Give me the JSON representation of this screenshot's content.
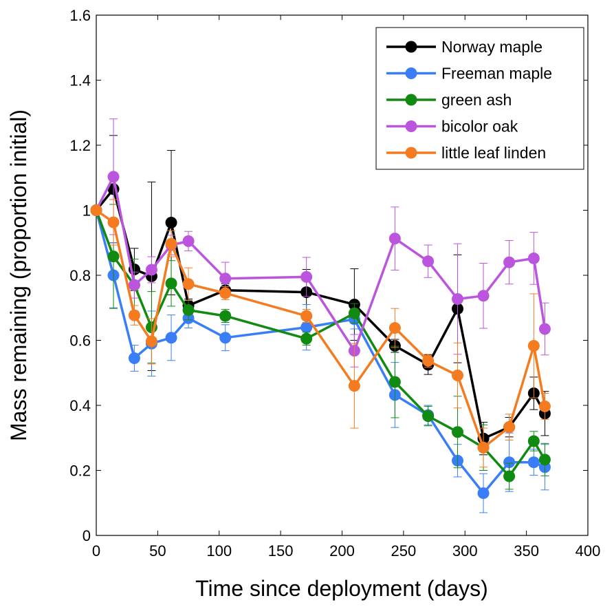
{
  "chart_data": {
    "type": "line",
    "title": "",
    "xlabel": "Time since deployment (days)",
    "ylabel": "Mass remaining (proportion initial)",
    "xlim": [
      0,
      400
    ],
    "ylim": [
      0,
      1.6
    ],
    "xticks": [
      "0",
      "50",
      "100",
      "150",
      "200",
      "250",
      "300",
      "350",
      "400"
    ],
    "yticks": [
      "0",
      "0.2",
      "0.4",
      "0.6",
      "0.8",
      "1",
      "1.2",
      "1.4",
      "1.6"
    ],
    "grid": false,
    "legend_position": "top-right",
    "x": [
      0,
      14,
      31,
      45,
      61,
      75,
      105,
      171,
      210,
      243,
      270,
      294,
      315,
      336,
      356,
      365
    ],
    "series": [
      {
        "name": "Norway maple",
        "color": "#000000",
        "values": [
          1.0,
          1.065,
          0.818,
          0.797,
          0.962,
          0.707,
          0.754,
          0.748,
          0.71,
          0.583,
          0.525,
          0.697,
          0.298,
          0.333,
          0.437,
          0.375
        ],
        "errors": [
          0,
          0.165,
          0.065,
          0.29,
          0.222,
          0.02,
          0.02,
          0.07,
          0.11,
          0.02,
          0.03,
          0.166,
          0.05,
          0.03,
          0.05,
          0.068
        ]
      },
      {
        "name": "Freeman maple",
        "color": "#3a7ef7",
        "values": [
          1.0,
          0.8,
          0.545,
          0.59,
          0.608,
          0.668,
          0.608,
          0.64,
          0.665,
          0.432,
          0.37,
          0.23,
          0.13,
          0.225,
          0.225,
          0.21
        ],
        "errors": [
          0,
          0.1,
          0.04,
          0.1,
          0.07,
          0.03,
          0.04,
          0.07,
          0.03,
          0.1,
          0.03,
          0.05,
          0.06,
          0.09,
          0.04,
          0.07
        ]
      },
      {
        "name": "green ash",
        "color": "#108a10",
        "values": [
          1.0,
          0.858,
          0.77,
          0.64,
          0.775,
          0.693,
          0.675,
          0.605,
          0.683,
          0.472,
          0.367,
          0.318,
          0.27,
          0.182,
          0.29,
          0.233
        ],
        "errors": [
          0,
          0.16,
          0.08,
          0.11,
          0.07,
          0.03,
          0.02,
          0.02,
          0.03,
          0.11,
          0.03,
          0.11,
          0.07,
          0.04,
          0.03,
          0.05
        ]
      },
      {
        "name": "bicolor oak",
        "color": "#bb55dd",
        "values": [
          1.0,
          1.103,
          0.77,
          0.817,
          0.893,
          0.905,
          0.79,
          0.795,
          0.568,
          0.913,
          0.843,
          0.727,
          0.737,
          0.84,
          0.852,
          0.635
        ],
        "errors": [
          0,
          0.178,
          0.04,
          0.04,
          0.03,
          0.03,
          0.05,
          0.06,
          0.05,
          0.097,
          0.05,
          0.17,
          0.1,
          0.067,
          0.08,
          0.08
        ]
      },
      {
        "name": "little leaf linden",
        "color": "#f47b20",
        "values": [
          1.0,
          0.963,
          0.677,
          0.597,
          0.897,
          0.773,
          0.745,
          0.675,
          0.46,
          0.638,
          0.537,
          0.492,
          0.27,
          0.333,
          0.583,
          0.397
        ],
        "errors": [
          0,
          0.07,
          0.03,
          0.07,
          0.04,
          0.05,
          0.02,
          0.02,
          0.13,
          0.06,
          0.02,
          0.1,
          0.06,
          0.04,
          0.16,
          0.04
        ]
      }
    ]
  }
}
